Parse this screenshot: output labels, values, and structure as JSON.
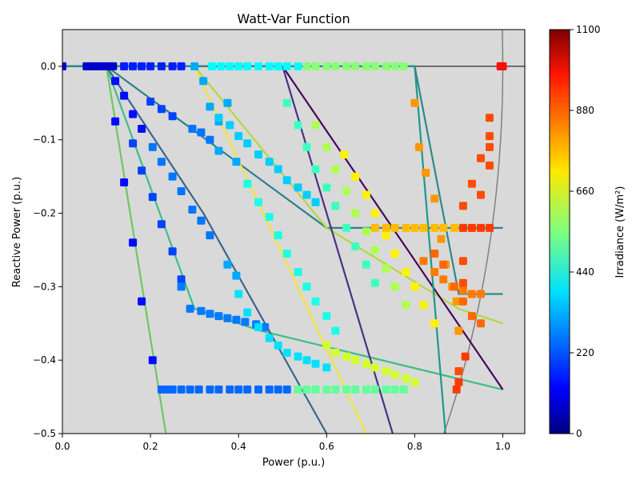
{
  "chart_data": {
    "type": "scatter",
    "title": "Watt-Var Function",
    "xlabel": "Power (p.u.)",
    "ylabel": "Reactive Power (p.u.)",
    "xlim": [
      0.0,
      1.05
    ],
    "ylim": [
      -0.5,
      0.05
    ],
    "x_ticks": [
      0.0,
      0.2,
      0.4,
      0.6,
      0.8,
      1.0
    ],
    "x_tick_labels": [
      "0.0",
      "0.2",
      "0.4",
      "0.6",
      "0.8",
      "1.0"
    ],
    "y_ticks": [
      0.0,
      -0.1,
      -0.2,
      -0.3,
      -0.4,
      -0.5
    ],
    "y_tick_labels": [
      "0.0",
      "−0.1",
      "−0.2",
      "−0.3",
      "−0.4",
      "−0.5"
    ],
    "background_color": "#d9d9d9",
    "zero_line": true,
    "capability_curve_color": "#808080",
    "colorbar": {
      "label": "Irradiance (W/m²)",
      "range": [
        0,
        1100
      ],
      "ticks": [
        0,
        220,
        440,
        660,
        880,
        1100
      ],
      "tick_labels": [
        "0",
        "220",
        "440",
        "660",
        "880",
        "1100"
      ],
      "colormap": "jet"
    },
    "curves": [
      {
        "points": [
          [
            0.0,
            0.0
          ],
          [
            0.1,
            0.0
          ],
          [
            0.235,
            -0.5
          ]
        ],
        "color": "#6cc862"
      },
      {
        "points": [
          [
            0.0,
            0.0
          ],
          [
            0.1,
            0.0
          ],
          [
            0.3,
            -0.33
          ],
          [
            0.45,
            -0.36
          ],
          [
            1.0,
            -0.44
          ]
        ],
        "color": "#3dbf84"
      },
      {
        "points": [
          [
            0.0,
            0.0
          ],
          [
            0.1,
            0.0
          ],
          [
            0.32,
            -0.2
          ],
          [
            0.6,
            -0.5
          ]
        ],
        "color": "#3a6690"
      },
      {
        "points": [
          [
            0.0,
            0.0
          ],
          [
            0.1,
            0.0
          ],
          [
            0.6,
            -0.22
          ],
          [
            1.0,
            -0.22
          ]
        ],
        "color": "#2d7f8e"
      },
      {
        "points": [
          [
            0.0,
            0.0
          ],
          [
            0.3,
            0.0
          ],
          [
            0.69,
            -0.5
          ]
        ],
        "color": "#f2e53a"
      },
      {
        "points": [
          [
            0.0,
            0.0
          ],
          [
            0.3,
            0.0
          ],
          [
            0.6,
            -0.22
          ],
          [
            0.9,
            -0.33
          ],
          [
            1.0,
            -0.35
          ]
        ],
        "color": "#b4d83a"
      },
      {
        "points": [
          [
            0.0,
            0.0
          ],
          [
            0.5,
            0.0
          ],
          [
            0.75,
            -0.5
          ]
        ],
        "color": "#453484"
      },
      {
        "points": [
          [
            0.0,
            0.0
          ],
          [
            0.5,
            0.0
          ],
          [
            1.0,
            -0.44
          ]
        ],
        "color": "#46085c"
      },
      {
        "points": [
          [
            0.0,
            0.0
          ],
          [
            0.8,
            0.0
          ],
          [
            0.87,
            -0.5
          ]
        ],
        "color": "#22968b"
      },
      {
        "points": [
          [
            0.0,
            0.0
          ],
          [
            0.8,
            0.0
          ],
          [
            0.9,
            -0.31
          ],
          [
            1.0,
            -0.31
          ]
        ],
        "color": "#2c8a8c"
      }
    ],
    "scatter_groups": [
      {
        "x": [
          0.0,
          0.055,
          0.065,
          0.075,
          0.085,
          0.095,
          0.105,
          0.115
        ],
        "y": [
          0.0,
          0.0,
          0.0,
          0.0,
          0.0,
          0.0,
          0.0,
          0.0
        ],
        "irradiance": 80
      },
      {
        "x": [
          0.12,
          0.12,
          0.14,
          0.14,
          0.16,
          0.16,
          0.18,
          0.18,
          0.205
        ],
        "y": [
          -0.02,
          -0.075,
          -0.04,
          -0.158,
          -0.065,
          -0.24,
          -0.085,
          -0.32,
          -0.4
        ],
        "irradiance": 150
      },
      {
        "x": [
          0.14,
          0.16,
          0.18,
          0.2,
          0.225,
          0.25,
          0.27
        ],
        "y": [
          0.0,
          0.0,
          0.0,
          0.0,
          0.0,
          0.0,
          0.0
        ],
        "irradiance": 170
      },
      {
        "x": [
          0.16,
          0.18,
          0.2,
          0.205,
          0.225,
          0.225,
          0.25,
          0.25,
          0.27
        ],
        "y": [
          -0.105,
          -0.142,
          -0.048,
          -0.178,
          -0.058,
          -0.215,
          -0.068,
          -0.252,
          -0.29
        ],
        "irradiance": 210
      },
      {
        "x": [
          0.225,
          0.24,
          0.25,
          0.27,
          0.29,
          0.31,
          0.335,
          0.355,
          0.38,
          0.4,
          0.42,
          0.445,
          0.47,
          0.49,
          0.51
        ],
        "y": [
          -0.44,
          -0.44,
          -0.44,
          -0.44,
          -0.44,
          -0.44,
          -0.44,
          -0.44,
          -0.44,
          -0.44,
          -0.44,
          -0.44,
          -0.44,
          -0.44,
          -0.44
        ],
        "irradiance": 250
      },
      {
        "x": [
          0.205,
          0.225,
          0.25,
          0.27,
          0.295,
          0.295,
          0.315,
          0.315,
          0.335,
          0.335
        ],
        "y": [
          -0.11,
          -0.13,
          -0.15,
          -0.17,
          -0.085,
          -0.195,
          -0.09,
          -0.21,
          -0.1,
          -0.23
        ],
        "irradiance": 265
      },
      {
        "x": [
          0.27,
          0.29,
          0.315,
          0.335,
          0.355,
          0.375,
          0.395,
          0.415,
          0.44,
          0.46
        ],
        "y": [
          -0.3,
          -0.33,
          -0.333,
          -0.337,
          -0.34,
          -0.343,
          -0.345,
          -0.348,
          -0.351,
          -0.355
        ],
        "irradiance": 270
      },
      {
        "x": [
          0.3,
          0.32,
          0.335,
          0.355,
          0.355,
          0.375,
          0.375,
          0.395,
          0.395
        ],
        "y": [
          0.0,
          -0.02,
          -0.055,
          -0.075,
          -0.115,
          -0.05,
          -0.27,
          -0.285,
          -0.13
        ],
        "irradiance": 320
      },
      {
        "x": [
          0.355,
          0.38,
          0.4,
          0.42,
          0.445,
          0.47,
          0.49,
          0.51,
          0.535,
          0.555,
          0.575
        ],
        "y": [
          -0.07,
          -0.08,
          -0.095,
          -0.105,
          -0.12,
          -0.13,
          -0.14,
          -0.155,
          -0.165,
          -0.175,
          -0.185
        ],
        "irradiance": 360
      },
      {
        "x": [
          0.4,
          0.42,
          0.445,
          0.47,
          0.49,
          0.51,
          0.535,
          0.555,
          0.575,
          0.6
        ],
        "y": [
          -0.31,
          -0.335,
          -0.355,
          -0.37,
          -0.38,
          -0.39,
          -0.395,
          -0.4,
          -0.405,
          -0.41
        ],
        "irradiance": 380
      },
      {
        "x": [
          0.34,
          0.36,
          0.38,
          0.4,
          0.42,
          0.445,
          0.47,
          0.49,
          0.51,
          0.535
        ],
        "y": [
          0.0,
          0.0,
          0.0,
          0.0,
          0.0,
          0.0,
          0.0,
          0.0,
          0.0,
          0.0
        ],
        "irradiance": 410
      },
      {
        "x": [
          0.42,
          0.445,
          0.47,
          0.49,
          0.51,
          0.535,
          0.555,
          0.575,
          0.6,
          0.62
        ],
        "y": [
          -0.16,
          -0.185,
          -0.205,
          -0.23,
          -0.255,
          -0.28,
          -0.3,
          -0.32,
          -0.34,
          -0.36
        ],
        "irradiance": 440
      },
      {
        "x": [
          0.51,
          0.535,
          0.555,
          0.575,
          0.6,
          0.62,
          0.645,
          0.665,
          0.69,
          0.71
        ],
        "y": [
          -0.05,
          -0.08,
          -0.11,
          -0.14,
          -0.165,
          -0.19,
          -0.22,
          -0.245,
          -0.27,
          -0.295
        ],
        "irradiance": 480
      },
      {
        "x": [
          0.535,
          0.555,
          0.575,
          0.6,
          0.62,
          0.645,
          0.665,
          0.69,
          0.71,
          0.735,
          0.755,
          0.775
        ],
        "y": [
          -0.44,
          -0.44,
          -0.44,
          -0.44,
          -0.44,
          -0.44,
          -0.44,
          -0.44,
          -0.44,
          -0.44,
          -0.44,
          -0.44
        ],
        "irradiance": 520
      },
      {
        "x": [
          0.555,
          0.575,
          0.6,
          0.62,
          0.645,
          0.665,
          0.69,
          0.71,
          0.735,
          0.755,
          0.775
        ],
        "y": [
          0.0,
          0.0,
          0.0,
          0.0,
          0.0,
          0.0,
          0.0,
          0.0,
          0.0,
          0.0,
          0.0
        ],
        "irradiance": 560
      },
      {
        "x": [
          0.575,
          0.6,
          0.62,
          0.645,
          0.665,
          0.69,
          0.71,
          0.735,
          0.755,
          0.78
        ],
        "y": [
          -0.08,
          -0.11,
          -0.14,
          -0.17,
          -0.2,
          -0.225,
          -0.25,
          -0.275,
          -0.3,
          -0.325
        ],
        "irradiance": 600
      },
      {
        "x": [
          0.6,
          0.62,
          0.645,
          0.665,
          0.69,
          0.71,
          0.735,
          0.755,
          0.78,
          0.8
        ],
        "y": [
          -0.38,
          -0.39,
          -0.395,
          -0.4,
          -0.405,
          -0.41,
          -0.415,
          -0.42,
          -0.425,
          -0.43
        ],
        "irradiance": 640
      },
      {
        "x": [
          0.64,
          0.665,
          0.69,
          0.71,
          0.735,
          0.755,
          0.78,
          0.8,
          0.82,
          0.845
        ],
        "y": [
          -0.12,
          -0.15,
          -0.175,
          -0.2,
          -0.23,
          -0.255,
          -0.28,
          -0.3,
          -0.325,
          -0.35
        ],
        "irradiance": 700
      },
      {
        "x": [
          0.71,
          0.735,
          0.755,
          0.78,
          0.8,
          0.82,
          0.845,
          0.865,
          0.89,
          0.91
        ],
        "y": [
          -0.22,
          -0.22,
          -0.22,
          -0.22,
          -0.22,
          -0.22,
          -0.22,
          -0.22,
          -0.22,
          -0.22
        ],
        "irradiance": 760
      },
      {
        "x": [
          0.8,
          0.81,
          0.825,
          0.845,
          0.86,
          0.87,
          0.885,
          0.895,
          0.9
        ],
        "y": [
          -0.05,
          -0.11,
          -0.145,
          -0.18,
          -0.235,
          -0.27,
          -0.3,
          -0.32,
          -0.36
        ],
        "irradiance": 800
      },
      {
        "x": [
          0.82,
          0.845,
          0.865,
          0.89,
          0.91,
          0.93,
          0.95
        ],
        "y": [
          -0.265,
          -0.28,
          -0.29,
          -0.3,
          -0.305,
          -0.31,
          -0.31
        ],
        "irradiance": 830
      },
      {
        "x": [
          0.845,
          0.865,
          0.89,
          0.91,
          0.93,
          0.95
        ],
        "y": [
          -0.255,
          -0.27,
          -0.3,
          -0.32,
          -0.34,
          -0.35
        ],
        "irradiance": 850
      },
      {
        "x": [
          0.91,
          0.93,
          0.95,
          0.95,
          0.97,
          0.97,
          0.97,
          0.97,
          0.91,
          0.91,
          0.9
        ],
        "y": [
          -0.19,
          -0.16,
          -0.125,
          -0.175,
          -0.07,
          -0.095,
          -0.11,
          -0.135,
          -0.265,
          -0.295,
          -0.415
        ],
        "irradiance": 880
      },
      {
        "x": [
          0.91,
          0.93,
          0.95,
          0.97,
          0.9,
          0.895,
          0.915
        ],
        "y": [
          -0.22,
          -0.22,
          -0.22,
          -0.22,
          -0.43,
          -0.44,
          -0.395
        ],
        "irradiance": 900
      },
      {
        "x": [
          0.995,
          1.0
        ],
        "y": [
          0.0,
          0.0
        ],
        "irradiance": 950
      }
    ]
  }
}
